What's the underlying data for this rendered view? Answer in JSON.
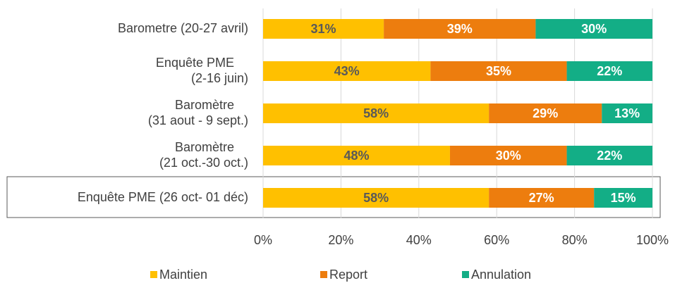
{
  "chart_data": {
    "type": "bar",
    "orientation": "horizontal",
    "stacked": true,
    "categories": [
      "Barometre (20-27 avril)",
      "Enquête PME\n(2-16 juin)",
      "Baromètre\n(31 aout - 9 sept.)",
      "Baromètre\n(21 oct.-30 oct.)",
      "Enquête PME (26 oct- 01 déc)"
    ],
    "series": [
      {
        "name": "Maintien",
        "color": "#FFC000",
        "label_color": "#595959",
        "values": [
          31,
          43,
          58,
          48,
          58
        ],
        "value_labels": [
          "31%",
          "43%",
          "58%",
          "48%",
          "58%"
        ]
      },
      {
        "name": "Report",
        "color": "#ED7D0E",
        "label_color": "#FFFFFF",
        "values": [
          39,
          35,
          29,
          30,
          27
        ],
        "value_labels": [
          "39%",
          "35%",
          "29%",
          "30%",
          "27%"
        ]
      },
      {
        "name": "Annulation",
        "color": "#13AE86",
        "label_color": "#FFFFFF",
        "values": [
          30,
          22,
          13,
          22,
          15
        ],
        "value_labels": [
          "30%",
          "22%",
          "13%",
          "22%",
          "15%"
        ]
      }
    ],
    "xlim": [
      0,
      100
    ],
    "xticks": [
      {
        "value": 0,
        "label": "0%"
      },
      {
        "value": 20,
        "label": "20%"
      },
      {
        "value": 40,
        "label": "40%"
      },
      {
        "value": 60,
        "label": "60%"
      },
      {
        "value": 80,
        "label": "80%"
      },
      {
        "value": 100,
        "label": "100%"
      }
    ],
    "grid": true,
    "legend": "bottom"
  }
}
